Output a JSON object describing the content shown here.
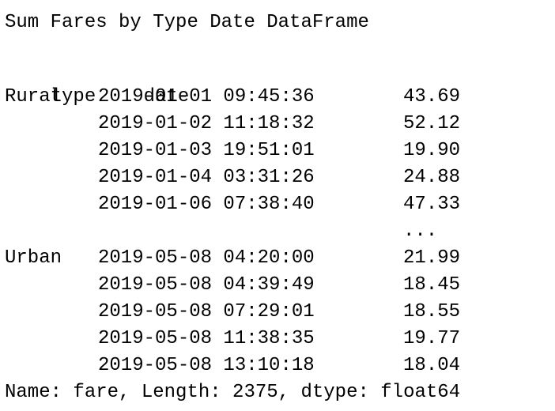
{
  "title": "Sum Fares by Type Date DataFrame",
  "headers": {
    "type": "type",
    "date": "date"
  },
  "rows": [
    {
      "type": "Rural",
      "date": "2019-01-01 09:45:36",
      "value": "43.69"
    },
    {
      "type": "",
      "date": "2019-01-02 11:18:32",
      "value": "52.12"
    },
    {
      "type": "",
      "date": "2019-01-03 19:51:01",
      "value": "19.90"
    },
    {
      "type": "",
      "date": "2019-01-04 03:31:26",
      "value": "24.88"
    },
    {
      "type": "",
      "date": "2019-01-06 07:38:40",
      "value": "47.33"
    },
    {
      "type": "",
      "date": "",
      "value": "..."
    },
    {
      "type": "Urban",
      "date": "2019-05-08 04:20:00",
      "value": "21.99"
    },
    {
      "type": "",
      "date": "2019-05-08 04:39:49",
      "value": "18.45"
    },
    {
      "type": "",
      "date": "2019-05-08 07:29:01",
      "value": "18.55"
    },
    {
      "type": "",
      "date": "2019-05-08 11:38:35",
      "value": "19.77"
    },
    {
      "type": "",
      "date": "2019-05-08 13:10:18",
      "value": "18.04"
    }
  ],
  "footer": "Name: fare, Length: 2375, dtype: float64"
}
